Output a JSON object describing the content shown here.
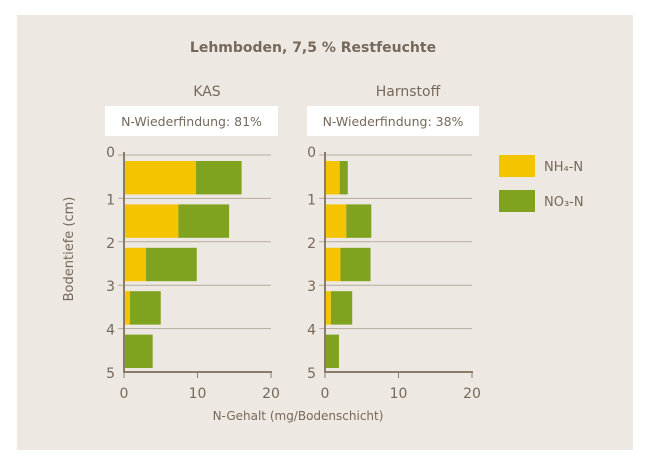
{
  "chart_data": {
    "type": "bar",
    "orientation": "horizontal-stacked",
    "title": "Lehmboden, 7,5 % Restfeuchte",
    "xlabel": "N-Gehalt (mg/Bodenschicht)",
    "ylabel": "Bodentiefe (cm)",
    "xlim": [
      0,
      20
    ],
    "xticks": [
      "0",
      "10",
      "20"
    ],
    "ylim": [
      0,
      5
    ],
    "yticks": [
      "0",
      "1",
      "2",
      "3",
      "4",
      "5"
    ],
    "grid": true,
    "legend_position": "right",
    "legend": [
      {
        "name": "NH₄-N",
        "color": "#f5c400"
      },
      {
        "name": "NO₃-N",
        "color": "#7fa21f"
      }
    ],
    "panels": [
      {
        "title": "KAS",
        "annotation": "N-Wiederfindung: 81%",
        "depth_layers": [
          "0-1",
          "1-2",
          "2-3",
          "3-4",
          "4-5"
        ],
        "series": [
          {
            "name": "NH₄-N",
            "values": [
              9.8,
              7.4,
              3.0,
              0.8,
              0
            ]
          },
          {
            "name": "NO₃-N",
            "values": [
              6.2,
              6.9,
              6.9,
              4.2,
              3.9
            ]
          }
        ]
      },
      {
        "title": "Harnstoff",
        "annotation": "N-Wiederfindung: 38%",
        "depth_layers": [
          "0-1",
          "1-2",
          "2-3",
          "3-4",
          "4-5"
        ],
        "series": [
          {
            "name": "NH₄-N",
            "values": [
              2.0,
              2.9,
              2.1,
              0.8,
              0
            ]
          },
          {
            "name": "NO₃-N",
            "values": [
              1.1,
              3.4,
              4.1,
              2.9,
              1.9
            ]
          }
        ]
      }
    ]
  }
}
